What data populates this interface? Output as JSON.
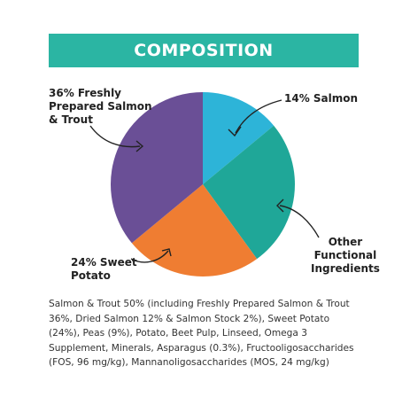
{
  "header": {
    "title": "COMPOSITION",
    "color": "#2bb5a3"
  },
  "chart_data": {
    "type": "pie",
    "title": "COMPOSITION",
    "slices": [
      {
        "label": "14% Salmon",
        "value": 14,
        "color": "#2db4d8"
      },
      {
        "label": "Other\nFunctional\nIngredients",
        "value": 26,
        "color": "#1fa798"
      },
      {
        "label": "24% Sweet\nPotato",
        "value": 24,
        "color": "#ef7d32"
      },
      {
        "label": "36% Freshly\nPrepared Salmon\n& Trout",
        "value": 36,
        "color": "#6a4f96"
      }
    ],
    "start_angle_deg": 0,
    "direction": "clockwise"
  },
  "ingredients": {
    "text": "Salmon & Trout 50% (including Freshly Prepared Salmon & Trout 36%, Dried Salmon 12% & Salmon Stock 2%), Sweet Potato (24%), Peas (9%), Potato, Beet Pulp, Linseed, Omega 3 Supplement, Minerals, Asparagus (0.3%), Fructooligosaccharides (FOS, 96 mg/kg), Mannanoligosaccharides (MOS, 24 mg/kg)"
  }
}
